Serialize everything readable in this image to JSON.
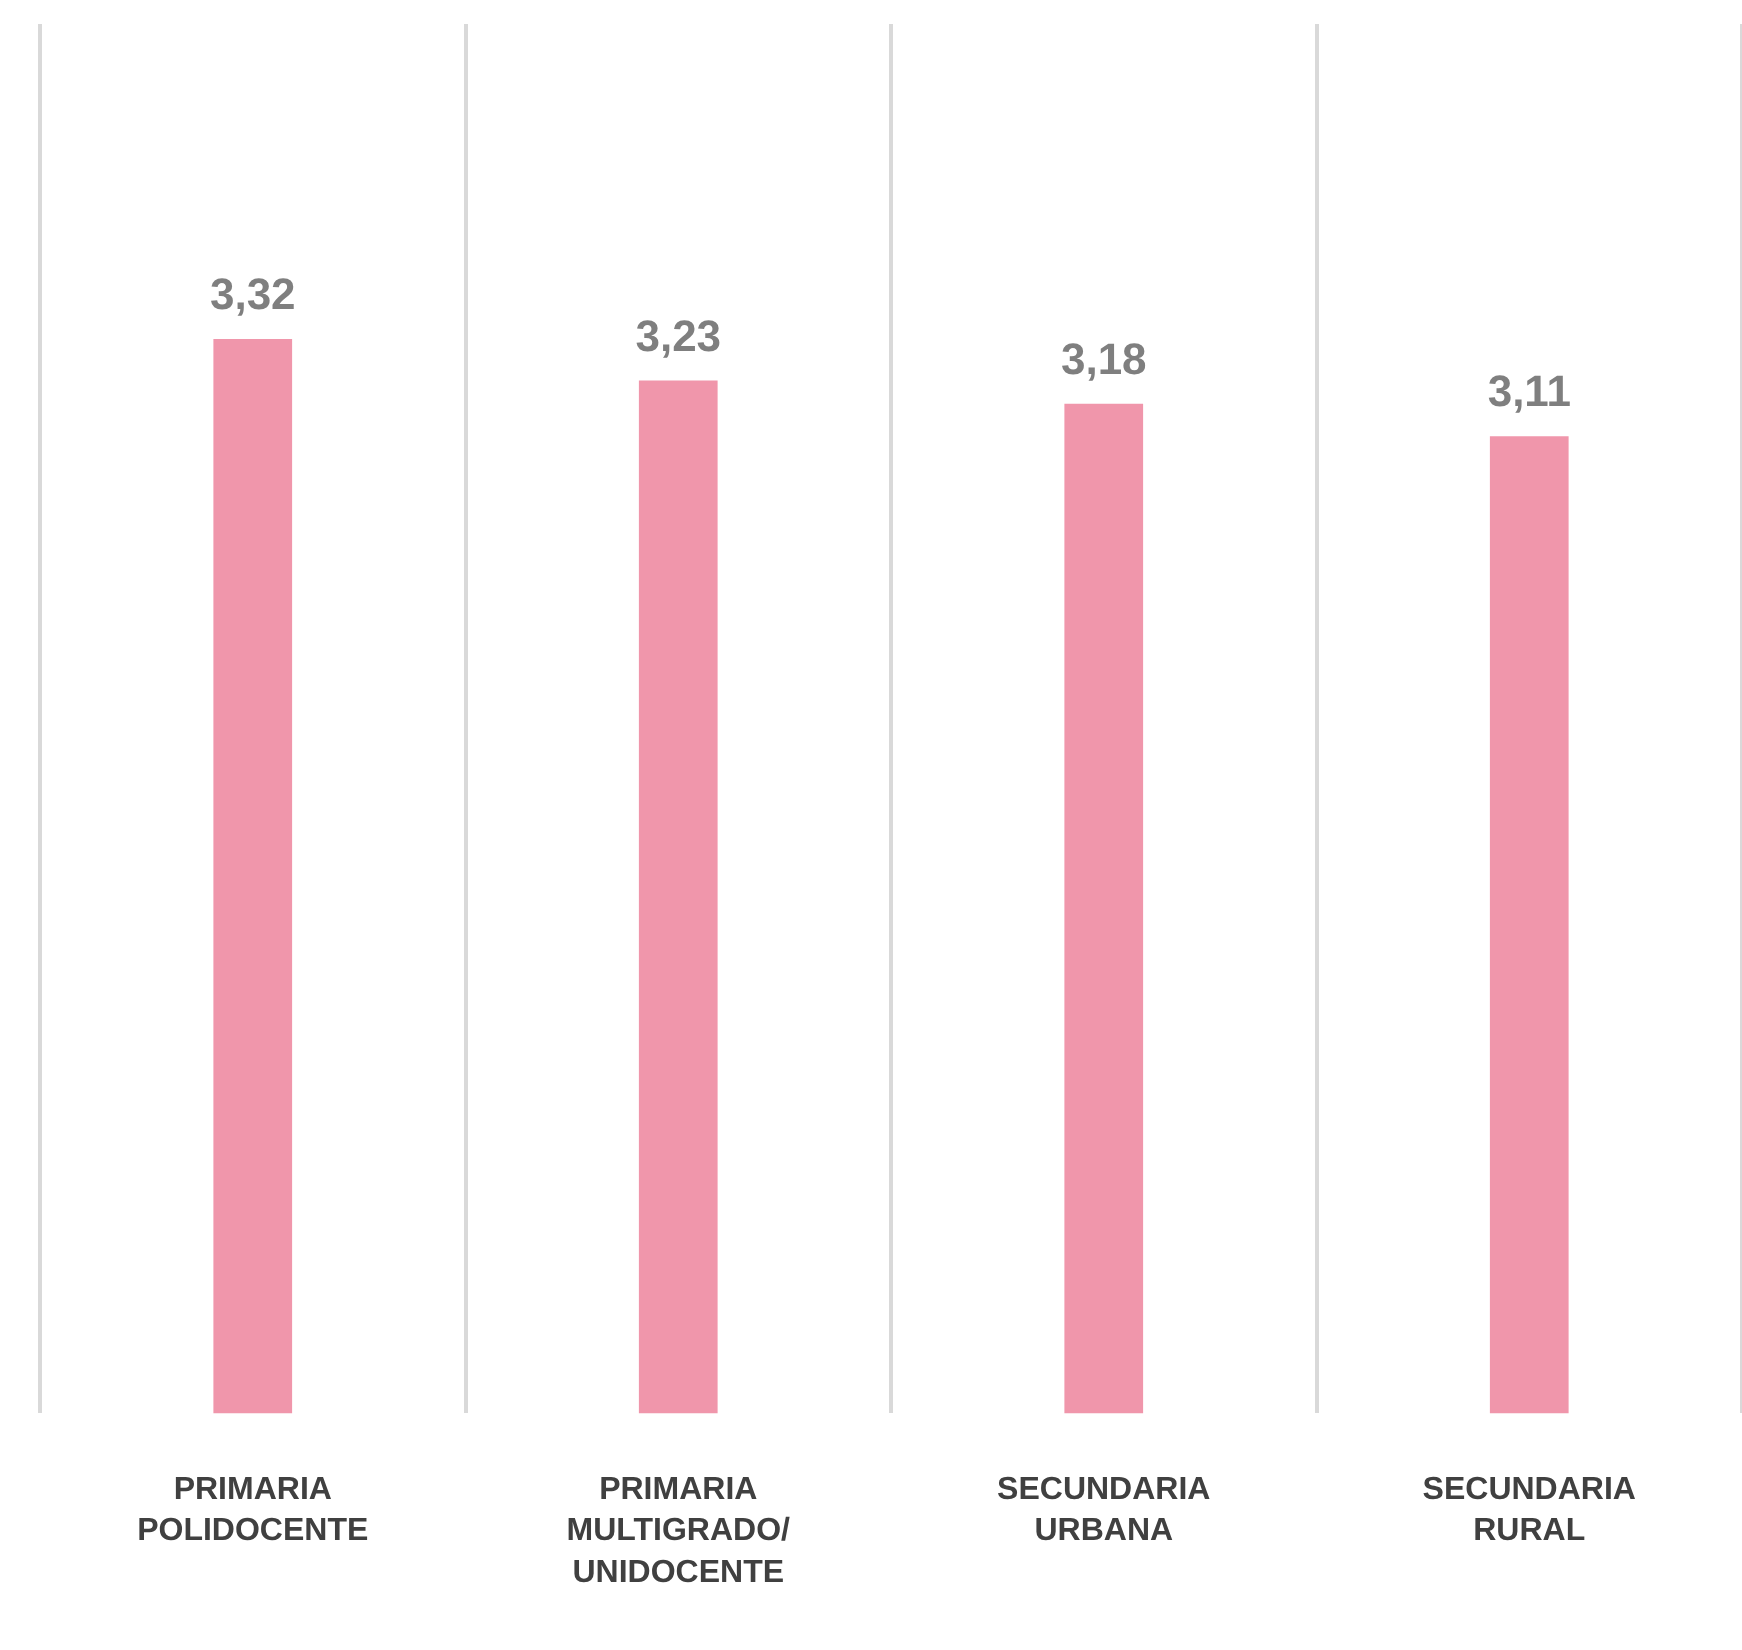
{
  "chart_data": {
    "type": "bar",
    "categories": [
      "PRIMARIA POLIDOCENTE",
      "PRIMARIA MULTIGRADO/UNIDOCENTE",
      "SECUNDARIA URBANA",
      "SECUNDARIA RURAL"
    ],
    "values": [
      3.32,
      3.23,
      3.18,
      3.11
    ],
    "value_labels": [
      "3,32",
      "3,23",
      "3,18",
      "3,11"
    ],
    "color": "#f096ab",
    "ylim": [
      1,
      4
    ],
    "grid": "x",
    "legend": false,
    "tick_labels": "x"
  }
}
